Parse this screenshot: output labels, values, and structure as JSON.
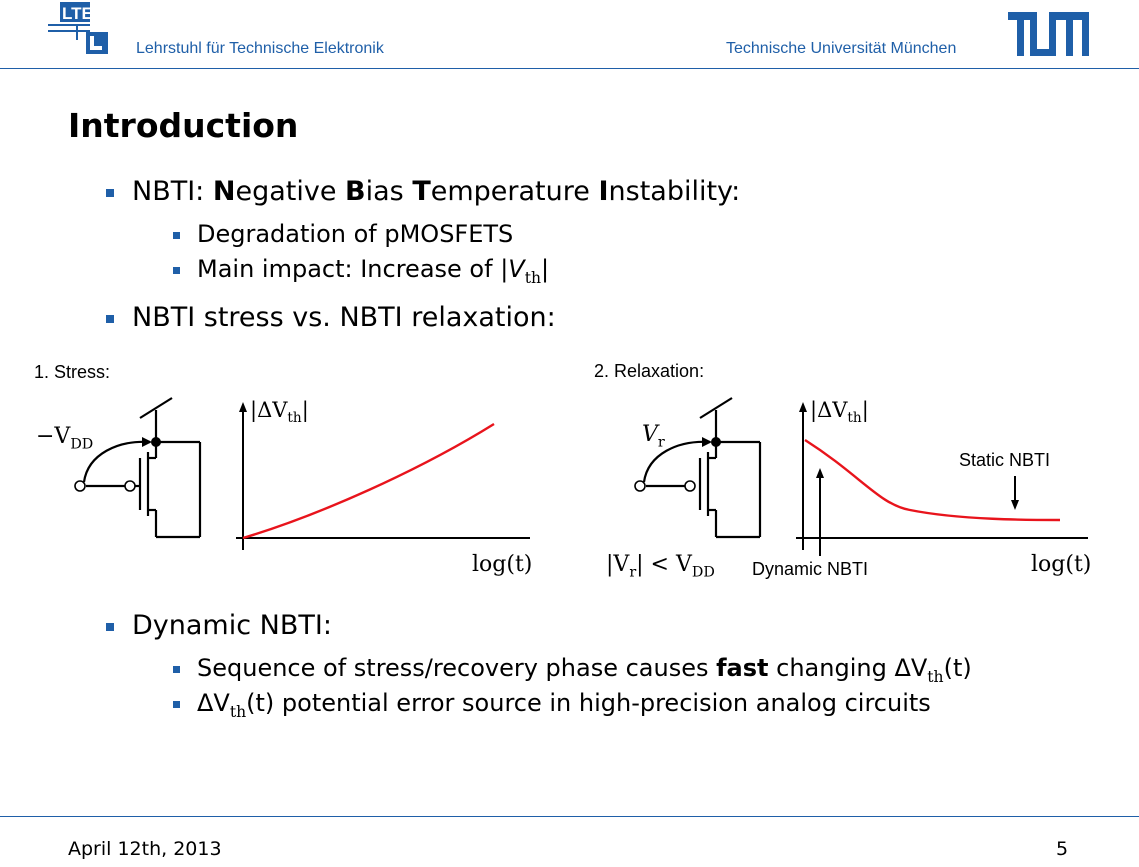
{
  "header": {
    "left_text": "Lehrstuhl für Technische Elektronik",
    "right_text": "Technische Universität München"
  },
  "title": "Introduction",
  "bullets": {
    "nbti": {
      "prefix": "NBTI: ",
      "n_b": "N",
      "n_r": "egative ",
      "b_b": "B",
      "b_r": "ias ",
      "t_b": "T",
      "t_r": "emperature ",
      "i_b": "I",
      "i_r": "nstability:",
      "sub1": "Degradation of pMOSFETS",
      "sub2_prefix": "Main impact: Increase of |",
      "sub2_var": "V",
      "sub2_subscript": "th",
      "sub2_suffix": "|"
    },
    "stress_vs_relax": "NBTI stress vs. NBTI relaxation:",
    "dynamic": {
      "label": "Dynamic NBTI:",
      "sub1_a": "Sequence of stress/recovery phase causes ",
      "sub1_bold": "fast",
      "sub1_b": " changing ΔV",
      "sub1_subscript": "th",
      "sub1_c": "(t)",
      "sub2_a": "ΔV",
      "sub2_subscript": "th",
      "sub2_b": "(t) potential error source in high-precision analog circuits"
    }
  },
  "figures": {
    "stress": {
      "label": "1. Stress:",
      "gate_voltage": "−V",
      "gate_voltage_sub": "DD",
      "ylabel": "|ΔV",
      "ylabel_sub": "th",
      "ylabel_end": "|",
      "xlabel": "log(t)",
      "curve_color": "#e8141c"
    },
    "relaxation": {
      "label": "2. Relaxation:",
      "gate_voltage": "V",
      "gate_voltage_sub": "r",
      "condition_a": "|V",
      "condition_sub1": "r",
      "condition_b": "| < V",
      "condition_sub2": "DD",
      "ylabel": "|ΔV",
      "ylabel_sub": "th",
      "ylabel_end": "|",
      "xlabel": "log(t)",
      "static_label": "Static NBTI",
      "dynamic_label": "Dynamic NBTI",
      "curve_color": "#e8141c"
    }
  },
  "footer": {
    "date": "April 12th, 2013",
    "page": "5"
  },
  "colors": {
    "accent": "#1f5fa8",
    "curve": "#e8141c"
  }
}
